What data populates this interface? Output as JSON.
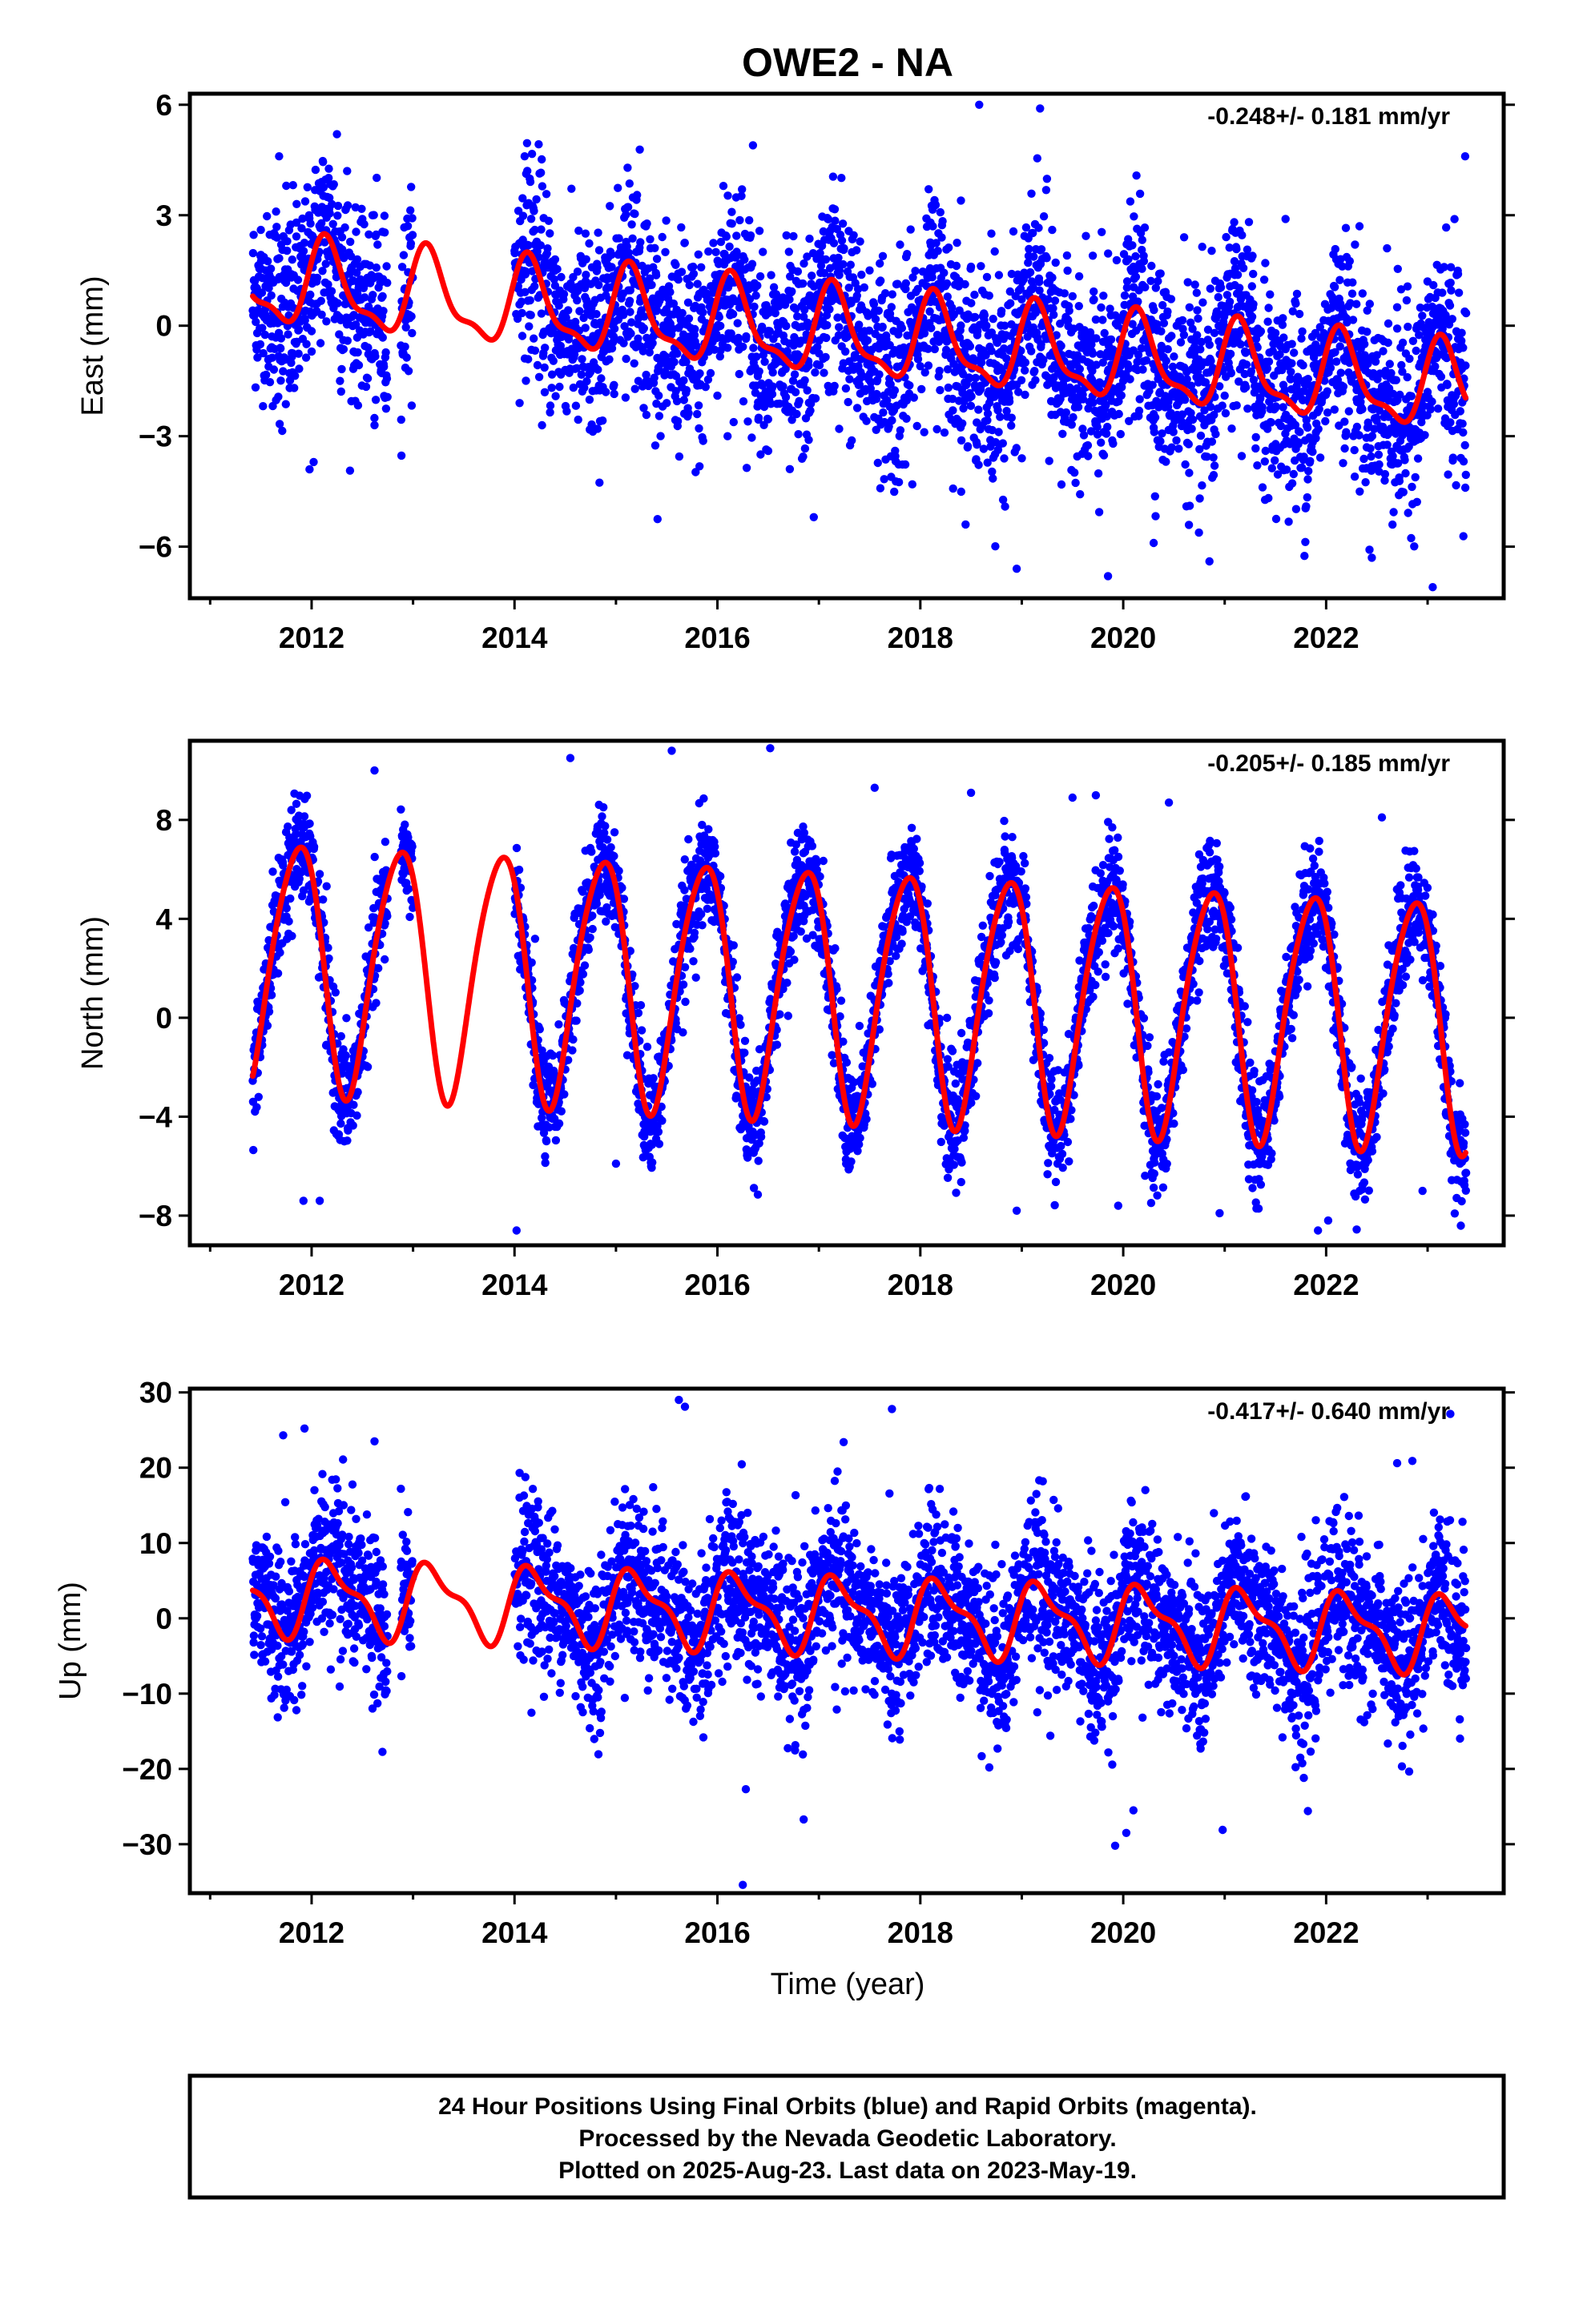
{
  "figure": {
    "title": "OWE2 - NA",
    "footer_lines": [
      "24 Hour Positions Using Final Orbits (blue) and Rapid Orbits (magenta).",
      "Processed by the Nevada Geodetic Laboratory.",
      "Plotted on 2025-Aug-23. Last data on 2023-May-19."
    ]
  },
  "colors": {
    "points": "#0000ff",
    "fit": "#ff0000",
    "frame": "#000000"
  },
  "chart_data": [
    {
      "type": "scatter",
      "component": "east",
      "ylabel": "East (mm)",
      "xlabel": "",
      "rate_text": "-0.248+/- 0.181 mm/yr",
      "xlim": [
        2010.8,
        2023.75
      ],
      "ylim": [
        -7.4,
        6.3
      ],
      "yticks": [
        -6,
        -3,
        0,
        3,
        6
      ],
      "yticklabels": [
        "−6",
        "−3",
        "0",
        "3",
        "6"
      ],
      "xticks": [
        2012,
        2014,
        2016,
        2018,
        2020,
        2022
      ],
      "xticklabels": [
        "2012",
        "2014",
        "2016",
        "2018",
        "2020",
        "2022"
      ],
      "series": [
        {
          "kind": "scatter",
          "segments": [
            [
              2011.42,
              2012.75
            ],
            [
              2012.88,
              2013.0
            ],
            [
              2014.0,
              2023.38
            ]
          ],
          "points": [
            [
              2011.45,
              1.0
            ],
            [
              2011.5,
              2.6
            ],
            [
              2011.55,
              1.5
            ],
            [
              2011.6,
              0.2
            ],
            [
              2011.65,
              3.1
            ],
            [
              2011.7,
              2.2
            ],
            [
              2011.75,
              3.8
            ],
            [
              2011.8,
              1.4
            ],
            [
              2011.85,
              2.8
            ],
            [
              2011.9,
              1.9
            ],
            [
              2011.95,
              -0.5
            ],
            [
              2012.0,
              -0.7
            ],
            [
              2012.05,
              1.2
            ],
            [
              2012.1,
              0.3
            ],
            [
              2012.15,
              2.0
            ],
            [
              2012.2,
              3.3
            ],
            [
              2012.25,
              1.6
            ],
            [
              2012.3,
              2.4
            ],
            [
              2012.35,
              4.2
            ],
            [
              2012.4,
              0.9
            ],
            [
              2012.45,
              1.8
            ],
            [
              2012.5,
              2.9
            ],
            [
              2012.55,
              1.3
            ],
            [
              2012.6,
              3.0
            ],
            [
              2012.65,
              2.2
            ],
            [
              2012.7,
              0.8
            ],
            [
              2011.58,
              -0.9
            ],
            [
              2011.98,
              -3.9
            ],
            [
              2012.02,
              -3.7
            ],
            [
              2012.25,
              5.2
            ],
            [
              2011.68,
              4.6
            ],
            [
              2012.62,
              -2.7
            ],
            [
              2012.28,
              -1.5
            ],
            [
              2014.05,
              1.5
            ],
            [
              2014.1,
              4.6
            ],
            [
              2014.15,
              0.3
            ],
            [
              2014.2,
              2.2
            ],
            [
              2014.3,
              -0.6
            ],
            [
              2014.4,
              1.8
            ],
            [
              2014.5,
              -1.2
            ],
            [
              2014.6,
              0.9
            ],
            [
              2014.7,
              2.5
            ],
            [
              2014.8,
              -0.3
            ],
            [
              2014.9,
              -1.8
            ],
            [
              2015.0,
              1.0
            ],
            [
              2015.1,
              -0.9
            ],
            [
              2015.2,
              2.0
            ],
            [
              2015.3,
              -1.5
            ],
            [
              2015.4,
              0.4
            ],
            [
              2015.5,
              -2.1
            ],
            [
              2015.6,
              1.3
            ],
            [
              2015.7,
              -0.6
            ],
            [
              2015.8,
              -2.4
            ],
            [
              2015.9,
              0.7
            ],
            [
              2016.0,
              -1.9
            ],
            [
              2016.1,
              -3.0
            ],
            [
              2016.2,
              -0.4
            ],
            [
              2016.3,
              -2.6
            ],
            [
              2016.4,
              -1.3
            ],
            [
              2016.5,
              -3.4
            ],
            [
              2016.6,
              -0.9
            ],
            [
              2016.7,
              -2.2
            ],
            [
              2016.8,
              -1.1
            ],
            [
              2016.9,
              -3.1
            ],
            [
              2017.0,
              0.3
            ],
            [
              2017.1,
              -1.8
            ],
            [
              2017.2,
              -2.8
            ],
            [
              2017.3,
              0.6
            ],
            [
              2017.4,
              -1.6
            ],
            [
              2017.5,
              1.5
            ],
            [
              2017.6,
              -0.5
            ],
            [
              2017.7,
              -2.2
            ],
            [
              2017.8,
              2.2
            ],
            [
              2017.9,
              0.1
            ],
            [
              2018.0,
              -1.1
            ],
            [
              2018.1,
              2.8
            ],
            [
              2018.2,
              1.0
            ],
            [
              2018.3,
              -0.3
            ],
            [
              2018.4,
              3.4
            ],
            [
              2018.5,
              1.6
            ],
            [
              2018.6,
              -0.8
            ],
            [
              2018.7,
              2.5
            ],
            [
              2018.8,
              0.4
            ],
            [
              2018.9,
              -2.5
            ],
            [
              2019.0,
              -3.6
            ],
            [
              2019.1,
              1.2
            ],
            [
              2019.2,
              -0.9
            ],
            [
              2019.3,
              2.6
            ],
            [
              2019.4,
              -1.7
            ],
            [
              2019.5,
              0.8
            ],
            [
              2019.6,
              -2.8
            ],
            [
              2019.7,
              1.9
            ],
            [
              2019.8,
              -1.0
            ],
            [
              2019.9,
              -3.2
            ],
            [
              2020.0,
              -1.5
            ],
            [
              2020.1,
              1.6
            ],
            [
              2020.2,
              -0.4
            ],
            [
              2020.3,
              -2.4
            ],
            [
              2020.4,
              0.9
            ],
            [
              2020.5,
              -1.3
            ],
            [
              2020.6,
              2.4
            ],
            [
              2020.7,
              -0.8
            ],
            [
              2020.8,
              -2.7
            ],
            [
              2020.9,
              -3.8
            ],
            [
              2021.0,
              -1.9
            ],
            [
              2021.1,
              1.1
            ],
            [
              2021.2,
              -0.7
            ],
            [
              2021.3,
              -2.2
            ],
            [
              2021.4,
              1.7
            ],
            [
              2021.5,
              -0.2
            ],
            [
              2021.6,
              2.9
            ],
            [
              2021.7,
              0.6
            ],
            [
              2021.8,
              -1.6
            ],
            [
              2021.9,
              -2.9
            ],
            [
              2022.0,
              -1.3
            ],
            [
              2022.1,
              1.8
            ],
            [
              2022.2,
              0.2
            ],
            [
              2022.3,
              -2.0
            ],
            [
              2022.4,
              -3.3
            ],
            [
              2022.5,
              -0.8
            ],
            [
              2022.6,
              2.1
            ],
            [
              2022.7,
              0.5
            ],
            [
              2022.8,
              -1.4
            ],
            [
              2022.9,
              -3.0
            ],
            [
              2023.0,
              -1.8
            ],
            [
              2023.1,
              0.9
            ],
            [
              2023.2,
              -2.2
            ],
            [
              2023.3,
              1.4
            ],
            [
              2023.35,
              -0.6
            ],
            [
              2016.35,
              4.9
            ],
            [
              2018.58,
              6.0
            ],
            [
              2019.18,
              5.9
            ],
            [
              2018.95,
              -6.6
            ],
            [
              2019.85,
              -6.8
            ],
            [
              2020.3,
              -5.9
            ],
            [
              2020.85,
              -6.4
            ],
            [
              2022.45,
              -6.3
            ],
            [
              2023.05,
              -7.1
            ],
            [
              2023.37,
              4.6
            ],
            [
              2016.95,
              -5.2
            ],
            [
              2014.05,
              -2.1
            ]
          ]
        },
        {
          "kind": "line",
          "name": "",
          "model": {
            "offset": 1.2,
            "trend": -0.248,
            "t0": 2011.4,
            "amp": 1.1,
            "phase": 0.6,
            "amp2": 0.4,
            "phase2": 0.2
          }
        }
      ]
    },
    {
      "type": "scatter",
      "component": "north",
      "ylabel": "North (mm)",
      "xlabel": "",
      "rate_text": "-0.205+/- 0.185 mm/yr",
      "xlim": [
        2010.8,
        2023.75
      ],
      "ylim": [
        -9.2,
        11.2
      ],
      "yticks": [
        -8,
        -4,
        0,
        4,
        8
      ],
      "yticklabels": [
        "−8",
        "−4",
        "0",
        "4",
        "8"
      ],
      "xticks": [
        2012,
        2014,
        2016,
        2018,
        2020,
        2022
      ],
      "xticklabels": [
        "2012",
        "2014",
        "2016",
        "2018",
        "2020",
        "2022"
      ],
      "series": [
        {
          "kind": "scatter",
          "segments": [
            [
              2011.42,
              2012.75
            ],
            [
              2012.88,
              2013.0
            ],
            [
              2014.0,
              2023.38
            ]
          ],
          "points": [
            [
              2011.92,
              -7.4
            ],
            [
              2012.08,
              -7.4
            ],
            [
              2014.02,
              -8.6
            ],
            [
              2015.0,
              -5.9
            ],
            [
              2016.52,
              10.9
            ],
            [
              2015.55,
              10.8
            ],
            [
              2014.55,
              10.5
            ],
            [
              2017.55,
              9.3
            ],
            [
              2018.5,
              9.1
            ],
            [
              2019.5,
              8.9
            ],
            [
              2020.45,
              8.7
            ],
            [
              2022.55,
              8.1
            ],
            [
              2018.95,
              -7.8
            ],
            [
              2019.95,
              -7.6
            ],
            [
              2020.95,
              -7.9
            ],
            [
              2021.92,
              -8.6
            ],
            [
              2022.02,
              -8.2
            ],
            [
              2022.95,
              -7.0
            ],
            [
              2012.62,
              10.0
            ]
          ]
        },
        {
          "kind": "line",
          "name": "",
          "model": {
            "offset": 2.3,
            "trend": -0.205,
            "t0": 2011.4,
            "amp": 5.0,
            "phase": 2.45,
            "amp2": 0.6,
            "phase2": 1.0
          }
        }
      ]
    },
    {
      "type": "scatter",
      "component": "up",
      "ylabel": "Up (mm)",
      "xlabel": "Time (year)",
      "rate_text": "-0.417+/- 0.640 mm/yr",
      "xlim": [
        2010.8,
        2023.75
      ],
      "ylim": [
        -36.5,
        30.5
      ],
      "yticks": [
        -30,
        -20,
        -10,
        0,
        10,
        20,
        30
      ],
      "yticklabels": [
        "−30",
        "−20",
        "−10",
        "0",
        "10",
        "20",
        "30"
      ],
      "xticks": [
        2012,
        2014,
        2016,
        2018,
        2020,
        2022
      ],
      "xticklabels": [
        "2012",
        "2014",
        "2016",
        "2018",
        "2020",
        "2022"
      ],
      "series": [
        {
          "kind": "scatter",
          "segments": [
            [
              2011.42,
              2012.75
            ],
            [
              2012.88,
              2013.0
            ],
            [
              2014.0,
              2023.38
            ]
          ],
          "points": [
            [
              2011.72,
              24.3
            ],
            [
              2011.85,
              -12.2
            ],
            [
              2011.93,
              25.2
            ],
            [
              2012.62,
              23.5
            ],
            [
              2015.62,
              29.0
            ],
            [
              2015.68,
              28.1
            ],
            [
              2017.72,
              27.8
            ],
            [
              2016.28,
              -22.7
            ],
            [
              2016.25,
              -35.4
            ],
            [
              2016.85,
              -26.7
            ],
            [
              2018.68,
              -19.8
            ],
            [
              2019.92,
              -30.2
            ],
            [
              2020.03,
              -28.5
            ],
            [
              2020.1,
              -25.5
            ],
            [
              2020.98,
              -28.1
            ],
            [
              2021.82,
              -25.6
            ],
            [
              2022.7,
              20.6
            ],
            [
              2022.85,
              20.9
            ],
            [
              2021.78,
              -21.2
            ],
            [
              2014.05,
              19.3
            ],
            [
              2012.88,
              17.2
            ],
            [
              2012.95,
              14.1
            ]
          ]
        },
        {
          "kind": "line",
          "name": "",
          "model": {
            "offset": 3.0,
            "trend": -0.417,
            "t0": 2011.4,
            "amp": 4.5,
            "phase": 0.3,
            "amp2": 1.8,
            "phase2": 0.9
          }
        }
      ]
    }
  ]
}
